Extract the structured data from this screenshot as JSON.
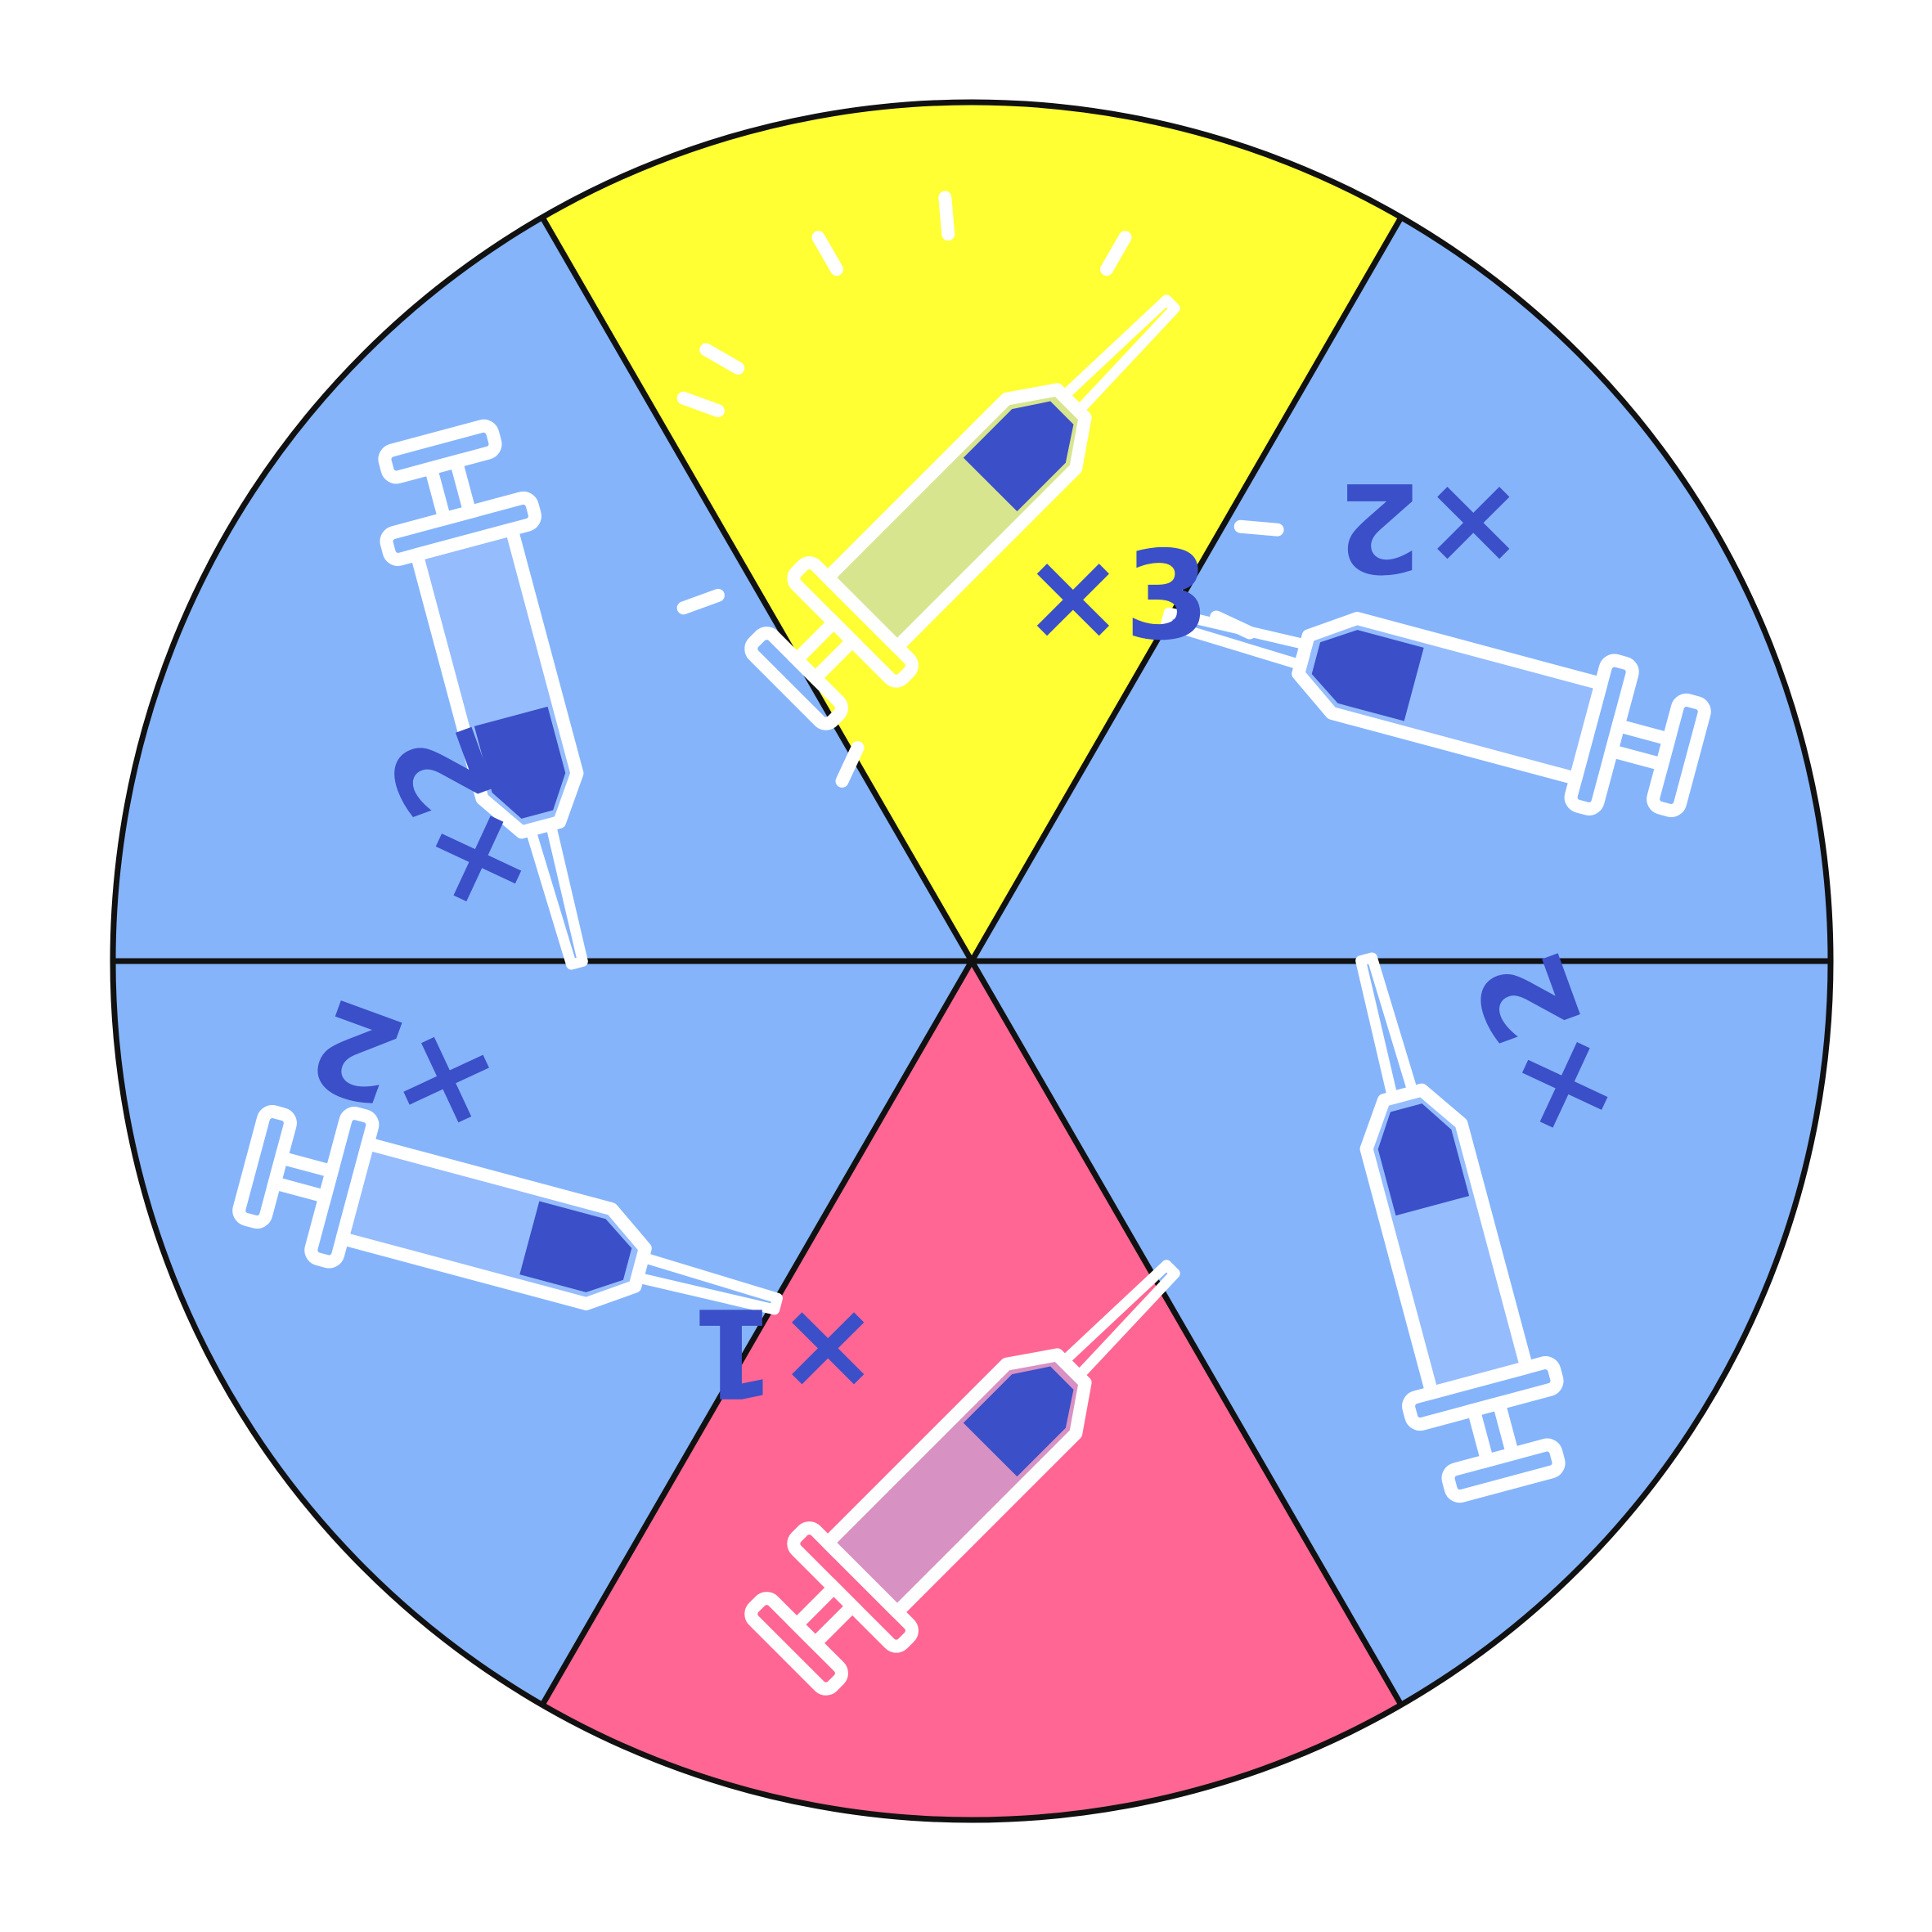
{
  "wheel": {
    "colors": {
      "outline": "#111111",
      "syringe_outline": "#ffffff",
      "ink": "#3a4fc8",
      "liquid_tint": "#a8c6ff"
    },
    "segments": [
      {
        "id": "top",
        "label": "×3",
        "color": "#ffff33",
        "icon": "syringe-icon-sparkle"
      },
      {
        "id": "upper-right",
        "label": "×2",
        "color": "#85b4fb",
        "icon": "syringe-icon"
      },
      {
        "id": "lower-right",
        "label": "×2",
        "color": "#85b4fb",
        "icon": "syringe-icon"
      },
      {
        "id": "bottom",
        "label": "×1",
        "color": "#ff6693",
        "icon": "syringe-icon"
      },
      {
        "id": "lower-left",
        "label": "×2",
        "color": "#85b4fb",
        "icon": "syringe-icon"
      },
      {
        "id": "upper-left",
        "label": "×2",
        "color": "#85b4fb",
        "icon": "syringe-icon"
      }
    ]
  }
}
